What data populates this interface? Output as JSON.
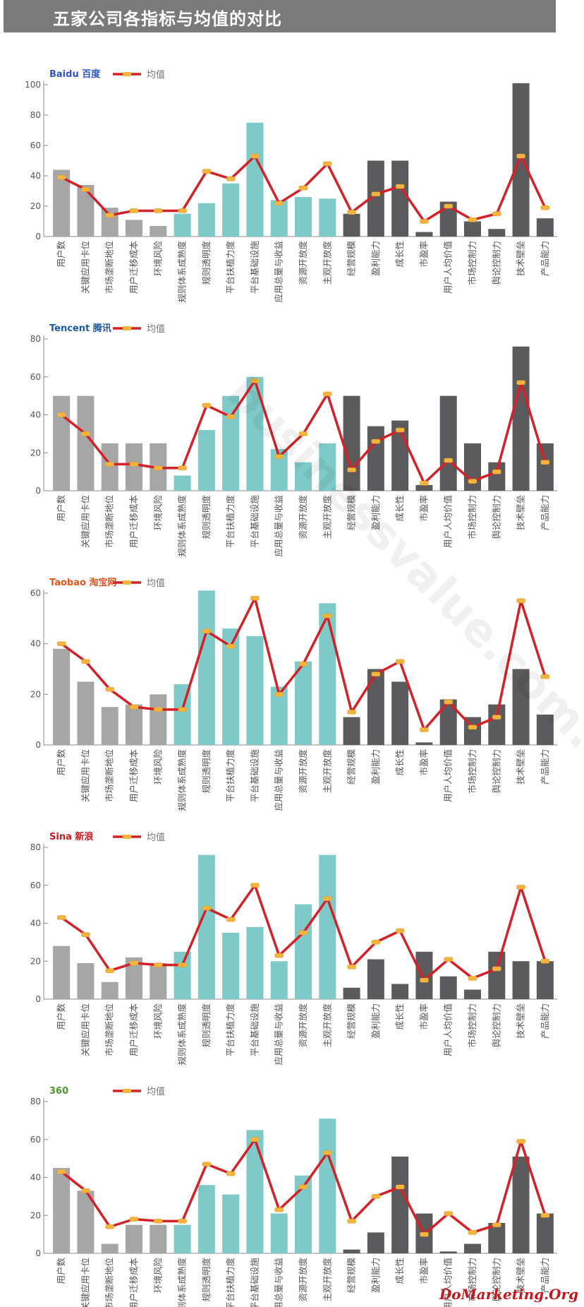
{
  "page": {
    "title": "五家公司各指标与均值的对比",
    "footer": "DoMarketing.Org",
    "watermark": "businessvalue.com.cn"
  },
  "colors": {
    "group1": "#a6a6a6",
    "group2": "#7dcac8",
    "group3": "#5b5b5d",
    "avg_line": "#d42027",
    "avg_marker": "#f3b43d",
    "title_bar": "#7a7a7a"
  },
  "chart_data": [
    {
      "type": "bar",
      "company": "Baidu 百度",
      "legend": "均值",
      "ylim": [
        0,
        100
      ],
      "yticks": [
        0,
        20,
        40,
        60,
        80,
        100
      ],
      "categories": [
        "用户数",
        "关键应用卡位",
        "市场垄断地位",
        "用户迁移成本",
        "环境风险",
        "规则体系成熟度",
        "规则透明度",
        "平台扶植力度",
        "平台基础设施",
        "应用总量与收益",
        "资源开放度",
        "主观开放度",
        "经营规模",
        "盈利能力",
        "成长性",
        "市盈率",
        "用户人均价值",
        "市场控制力",
        "舆论控制力",
        "技术壁垒",
        "产品能力"
      ],
      "groups": [
        1,
        1,
        1,
        1,
        1,
        2,
        2,
        2,
        2,
        2,
        2,
        2,
        3,
        3,
        3,
        3,
        3,
        3,
        3,
        3,
        3
      ],
      "series": [
        {
          "name": "",
          "values": [
            44,
            34,
            19,
            11,
            7,
            15,
            22,
            35,
            75,
            24,
            26,
            25,
            15,
            50,
            50,
            3,
            23,
            10,
            5,
            101,
            12
          ]
        },
        {
          "name": "均值",
          "values": [
            39,
            31,
            14,
            17,
            17,
            17,
            43,
            38,
            53,
            22,
            32,
            48,
            16,
            28,
            33,
            10,
            20,
            11,
            15,
            53,
            19
          ]
        }
      ]
    },
    {
      "type": "bar",
      "company": "Tencent 腾讯",
      "legend": "均值",
      "ylim": [
        0,
        80
      ],
      "yticks": [
        0,
        20,
        40,
        60,
        80
      ],
      "categories": [
        "用户数",
        "关键应用卡位",
        "市场垄断地位",
        "用户迁移成本",
        "环境风险",
        "规则体系成熟度",
        "规则透明度",
        "平台扶植力度",
        "平台基础设施",
        "应用总量与收益",
        "资源开放度",
        "主观开放度",
        "经营规模",
        "盈利能力",
        "成长性",
        "市盈率",
        "用户人均价值",
        "市场控制力",
        "舆论控制力",
        "技术壁垒",
        "产品能力"
      ],
      "groups": [
        1,
        1,
        1,
        1,
        1,
        2,
        2,
        2,
        2,
        2,
        2,
        2,
        3,
        3,
        3,
        3,
        3,
        3,
        3,
        3,
        3
      ],
      "series": [
        {
          "name": "",
          "values": [
            50,
            50,
            25,
            25,
            25,
            8,
            32,
            50,
            60,
            22,
            15,
            25,
            50,
            34,
            37,
            3,
            50,
            25,
            15,
            76,
            25
          ]
        },
        {
          "name": "均值",
          "values": [
            40,
            30,
            14,
            14,
            12,
            12,
            45,
            39,
            58,
            18,
            30,
            51,
            11,
            26,
            32,
            4,
            16,
            5,
            10,
            57,
            15
          ]
        }
      ]
    },
    {
      "type": "bar",
      "company": "Taobao 淘宝网",
      "legend": "均值",
      "ylim": [
        0,
        60
      ],
      "yticks": [
        0,
        20,
        40,
        60
      ],
      "categories": [
        "用户数",
        "关键应用卡位",
        "市场垄断地位",
        "用户迁移成本",
        "环境风险",
        "规则体系成熟度",
        "规则透明度",
        "平台扶植力度",
        "平台基础设施",
        "应用总量与收益",
        "资源开放度",
        "主观开放度",
        "经营规模",
        "盈利能力",
        "成长性",
        "市盈率",
        "用户人均价值",
        "市场控制力",
        "舆论控制力",
        "技术壁垒",
        "产品能力"
      ],
      "groups": [
        1,
        1,
        1,
        1,
        1,
        2,
        2,
        2,
        2,
        2,
        2,
        2,
        3,
        3,
        3,
        3,
        3,
        3,
        3,
        3,
        3
      ],
      "series": [
        {
          "name": "",
          "values": [
            38,
            25,
            15,
            16,
            20,
            24,
            61,
            46,
            43,
            23,
            33,
            56,
            11,
            30,
            25,
            1,
            18,
            11,
            16,
            30,
            12
          ]
        },
        {
          "name": "均值",
          "values": [
            40,
            33,
            22,
            15,
            14,
            14,
            45,
            39,
            58,
            20,
            32,
            51,
            13,
            28,
            33,
            6,
            17,
            7,
            11,
            57,
            27
          ]
        }
      ]
    },
    {
      "type": "bar",
      "company": "Sina 新浪",
      "legend": "均值",
      "ylim": [
        0,
        80
      ],
      "yticks": [
        0,
        20,
        40,
        60,
        80
      ],
      "categories": [
        "用户数",
        "关键应用卡位",
        "市场垄断地位",
        "用户迁移成本",
        "环境风险",
        "规则体系成熟度",
        "规则透明度",
        "平台扶植力度",
        "平台基础设施",
        "应用总量与收益",
        "资源开放度",
        "主观开放度",
        "经营规模",
        "盈利能力",
        "成长性",
        "市盈率",
        "用户人均价值",
        "市场控制力",
        "舆论控制力",
        "技术壁垒",
        "产品能力"
      ],
      "groups": [
        1,
        1,
        1,
        1,
        1,
        2,
        2,
        2,
        2,
        2,
        2,
        2,
        3,
        3,
        3,
        3,
        3,
        3,
        3,
        3,
        3
      ],
      "series": [
        {
          "name": "",
          "values": [
            28,
            19,
            9,
            22,
            19,
            25,
            76,
            35,
            38,
            20,
            50,
            76,
            6,
            21,
            8,
            25,
            12,
            5,
            25,
            20,
            20
          ]
        },
        {
          "name": "均值",
          "values": [
            43,
            34,
            15,
            19,
            18,
            18,
            48,
            42,
            60,
            23,
            35,
            53,
            17,
            30,
            36,
            10,
            21,
            11,
            16,
            59,
            20
          ]
        }
      ]
    },
    {
      "type": "bar",
      "company": "360",
      "legend": "均值",
      "ylim": [
        0,
        80
      ],
      "yticks": [
        0,
        20,
        40,
        60,
        80
      ],
      "categories": [
        "用户数",
        "关键应用卡位",
        "市场垄断地位",
        "用户迁移成本",
        "环境风险",
        "规则体系成熟度",
        "规则透明度",
        "平台扶植力度",
        "平台基础设施",
        "应用总量与收益",
        "资源开放度",
        "主观开放度",
        "经营规模",
        "盈利能力",
        "成长性",
        "市盈率",
        "用户人均价值",
        "市场控制力",
        "舆论控制力",
        "技术壁垒",
        "产品能力"
      ],
      "groups": [
        1,
        1,
        1,
        1,
        1,
        2,
        2,
        2,
        2,
        2,
        2,
        2,
        3,
        3,
        3,
        3,
        3,
        3,
        3,
        3,
        3
      ],
      "series": [
        {
          "name": "",
          "values": [
            45,
            33,
            5,
            15,
            15,
            15,
            36,
            31,
            65,
            21,
            41,
            71,
            2,
            11,
            51,
            21,
            1,
            5,
            16,
            51,
            21
          ]
        },
        {
          "name": "均值",
          "values": [
            43,
            33,
            14,
            18,
            17,
            17,
            47,
            42,
            60,
            23,
            35,
            53,
            17,
            30,
            35,
            10,
            21,
            11,
            15,
            59,
            20
          ]
        }
      ]
    }
  ]
}
